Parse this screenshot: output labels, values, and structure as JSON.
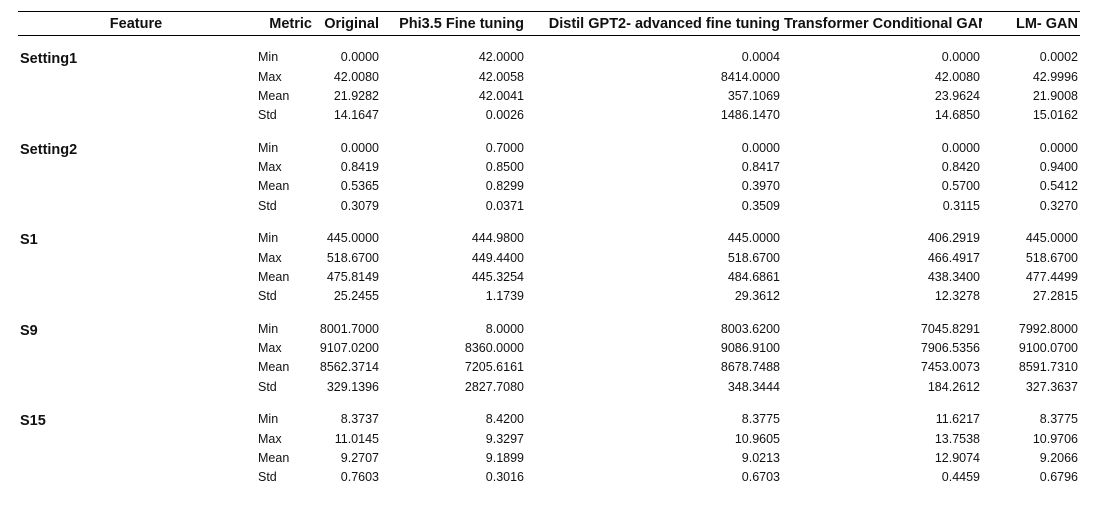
{
  "table": {
    "headers": {
      "feature": "Feature",
      "metric": "Metric",
      "original": "Original",
      "phi": "Phi3.5 Fine tuning",
      "distil": "Distil GPT2- advanced fine tuning",
      "tcgan": "Transformer Conditional GAN",
      "lmgan": "LM- GAN"
    },
    "groups": [
      {
        "feature": "Setting1",
        "rows": [
          {
            "metric": "Min",
            "original": "0.0000",
            "phi": "42.0000",
            "distil": "0.0004",
            "tcgan": "0.0000",
            "lmgan": "0.0002"
          },
          {
            "metric": "Max",
            "original": "42.0080",
            "phi": "42.0058",
            "distil": "8414.0000",
            "tcgan": "42.0080",
            "lmgan": "42.9996"
          },
          {
            "metric": "Mean",
            "original": "21.9282",
            "phi": "42.0041",
            "distil": "357.1069",
            "tcgan": "23.9624",
            "lmgan": "21.9008"
          },
          {
            "metric": "Std",
            "original": "14.1647",
            "phi": "0.0026",
            "distil": "1486.1470",
            "tcgan": "14.6850",
            "lmgan": "15.0162"
          }
        ]
      },
      {
        "feature": "Setting2",
        "rows": [
          {
            "metric": "Min",
            "original": "0.0000",
            "phi": "0.7000",
            "distil": "0.0000",
            "tcgan": "0.0000",
            "lmgan": "0.0000"
          },
          {
            "metric": "Max",
            "original": "0.8419",
            "phi": "0.8500",
            "distil": "0.8417",
            "tcgan": "0.8420",
            "lmgan": "0.9400"
          },
          {
            "metric": "Mean",
            "original": "0.5365",
            "phi": "0.8299",
            "distil": "0.3970",
            "tcgan": "0.5700",
            "lmgan": "0.5412"
          },
          {
            "metric": "Std",
            "original": "0.3079",
            "phi": "0.0371",
            "distil": "0.3509",
            "tcgan": "0.3115",
            "lmgan": "0.3270"
          }
        ]
      },
      {
        "feature": "S1",
        "rows": [
          {
            "metric": "Min",
            "original": "445.0000",
            "phi": "444.9800",
            "distil": "445.0000",
            "tcgan": "406.2919",
            "lmgan": "445.0000"
          },
          {
            "metric": "Max",
            "original": "518.6700",
            "phi": "449.4400",
            "distil": "518.6700",
            "tcgan": "466.4917",
            "lmgan": "518.6700"
          },
          {
            "metric": "Mean",
            "original": "475.8149",
            "phi": "445.3254",
            "distil": "484.6861",
            "tcgan": "438.3400",
            "lmgan": "477.4499"
          },
          {
            "metric": "Std",
            "original": "25.2455",
            "phi": "1.1739",
            "distil": "29.3612",
            "tcgan": "12.3278",
            "lmgan": "27.2815"
          }
        ]
      },
      {
        "feature": "S9",
        "rows": [
          {
            "metric": "Min",
            "original": "8001.7000",
            "phi": "8.0000",
            "distil": "8003.6200",
            "tcgan": "7045.8291",
            "lmgan": "7992.8000"
          },
          {
            "metric": "Max",
            "original": "9107.0200",
            "phi": "8360.0000",
            "distil": "9086.9100",
            "tcgan": "7906.5356",
            "lmgan": "9100.0700"
          },
          {
            "metric": "Mean",
            "original": "8562.3714",
            "phi": "7205.6161",
            "distil": "8678.7488",
            "tcgan": "7453.0073",
            "lmgan": "8591.7310"
          },
          {
            "metric": "Std",
            "original": "329.1396",
            "phi": "2827.7080",
            "distil": "348.3444",
            "tcgan": "184.2612",
            "lmgan": "327.3637"
          }
        ]
      },
      {
        "feature": "S15",
        "rows": [
          {
            "metric": "Min",
            "original": "8.3737",
            "phi": "8.4200",
            "distil": "8.3775",
            "tcgan": "11.6217",
            "lmgan": "8.3775"
          },
          {
            "metric": "Max",
            "original": "11.0145",
            "phi": "9.3297",
            "distil": "10.9605",
            "tcgan": "13.7538",
            "lmgan": "10.9706"
          },
          {
            "metric": "Mean",
            "original": "9.2707",
            "phi": "9.1899",
            "distil": "9.0213",
            "tcgan": "12.9074",
            "lmgan": "9.2066"
          },
          {
            "metric": "Std",
            "original": "0.7603",
            "phi": "0.3016",
            "distil": "0.6703",
            "tcgan": "0.4459",
            "lmgan": "0.6796"
          }
        ]
      }
    ]
  }
}
